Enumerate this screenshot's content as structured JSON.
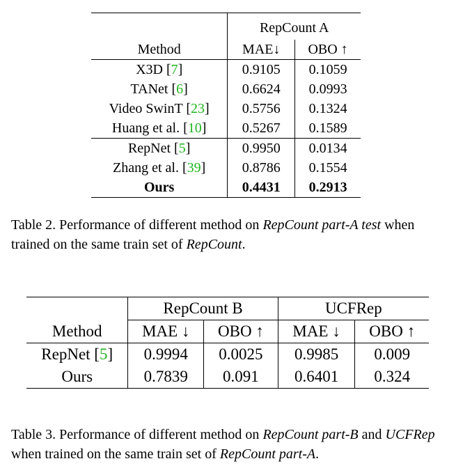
{
  "table2": {
    "group_header": "RepCount A",
    "col_method": "Method",
    "col_mae": "MAE↓",
    "col_obo": "OBO ↑",
    "rows": [
      {
        "name": "X3D [",
        "cite": "7",
        "close": "]",
        "mae": "0.9105",
        "obo": "0.1059"
      },
      {
        "name": "TANet [",
        "cite": "6",
        "close": "]",
        "mae": "0.6624",
        "obo": "0.0993"
      },
      {
        "name": "Video SwinT [",
        "cite": "23",
        "close": "]",
        "mae": "0.5756",
        "obo": "0.1324"
      },
      {
        "name": "Huang et al. [",
        "cite": "10",
        "close": "]",
        "mae": "0.5267",
        "obo": "0.1589"
      },
      {
        "name": "RepNet [",
        "cite": "5",
        "close": "]",
        "mae": "0.9950",
        "obo": "0.0134"
      },
      {
        "name": "Zhang et al. [",
        "cite": "39",
        "close": "]",
        "mae": "0.8786",
        "obo": "0.1554"
      },
      {
        "name": "Ours",
        "mae": "0.4431",
        "obo": "0.2913"
      }
    ],
    "caption": {
      "p1": "Table 2. Performance of different method on ",
      "i1": "RepCount part-A test",
      "p2": " when trained on the same train set of ",
      "i2": "RepCount",
      "p3": "."
    }
  },
  "table3": {
    "group_b": "RepCount B",
    "group_ucf": "UCFRep",
    "col_method": "Method",
    "col_mae": "MAE ↓",
    "col_obo": "OBO ↑",
    "rows": [
      {
        "name": "RepNet [",
        "cite": "5",
        "close": "]",
        "b_mae": "0.9994",
        "b_obo": "0.0025",
        "u_mae": "0.9985",
        "u_obo": "0.009"
      },
      {
        "name": "Ours",
        "b_mae": "0.7839",
        "b_obo": "0.091",
        "u_mae": "0.6401",
        "u_obo": "0.324"
      }
    ],
    "caption": {
      "p1": "Table 3. Performance of different method on ",
      "i1": "RepCount part-B",
      "p2": " and ",
      "i2": "UCFRep",
      "p3": " when trained on the same train set of ",
      "i3": "RepCount part-A",
      "p4": "."
    }
  }
}
